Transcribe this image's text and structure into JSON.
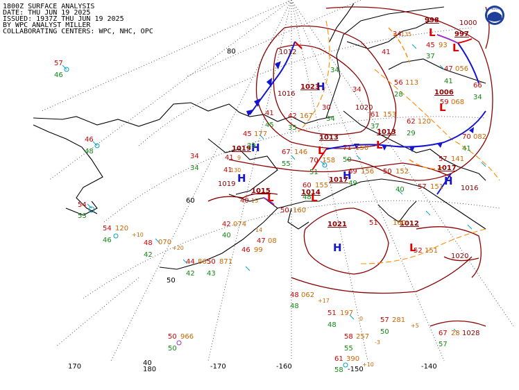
{
  "header": {
    "line1": "1800Z SURFACE ANALYSIS",
    "line2": "DATE: THU JUN 19 2025",
    "line3": "ISSUED: 1937Z THU JUN 19 2025",
    "line4": "BY WPC ANALYST MILLER",
    "line5": "COLLABORATING CENTERS: WPC, NHC, OPC"
  },
  "logo_text": "NOAA",
  "lat_labels": [
    "80",
    "60",
    "50",
    "40"
  ],
  "lon_labels": [
    "170",
    "180",
    "-170",
    "-160",
    "-150",
    "-140"
  ],
  "pressure_centers": [
    {
      "type": "H",
      "value": "1023"
    },
    {
      "type": "H",
      "value": "1019"
    },
    {
      "type": "H",
      "value": "1017"
    },
    {
      "type": "H",
      "value": "1021"
    },
    {
      "type": "H",
      "value": "1017"
    },
    {
      "type": "L",
      "value": "998"
    },
    {
      "type": "L",
      "value": "997"
    },
    {
      "type": "L",
      "value": "1013"
    },
    {
      "type": "L",
      "value": "1015"
    },
    {
      "type": "L",
      "value": "1014"
    },
    {
      "type": "L",
      "value": "1006"
    },
    {
      "type": "L",
      "value": "1012"
    },
    {
      "type": "L",
      "value": "1013"
    }
  ],
  "isobar_labels": [
    "1012",
    "1016",
    "1020",
    "1019",
    "1016",
    "1000",
    "1020",
    "1028"
  ],
  "station_obs": [
    {
      "temp": "57",
      "dew": "46"
    },
    {
      "temp": "46",
      "dew": "48"
    },
    {
      "temp": "54",
      "dew": "53"
    },
    {
      "temp": "54",
      "pres": "120",
      "dew": "46",
      "tend": "+10"
    },
    {
      "temp": "48",
      "pres": "070",
      "dew": "42",
      "tend": "+20"
    },
    {
      "temp": "44",
      "pres": "865",
      "dew": "42"
    },
    {
      "temp": "50",
      "pres": "871",
      "dew": "43"
    },
    {
      "temp": "50",
      "pres": "966",
      "dew": "50"
    },
    {
      "temp": "42",
      "pres": "074",
      "dew": "40",
      "tend": "14"
    },
    {
      "temp": "46",
      "pres": "99"
    },
    {
      "temp": "47",
      "pres": "08"
    },
    {
      "temp": "34",
      "dew": "34"
    },
    {
      "temp": "41",
      "pres": "130"
    },
    {
      "temp": "40",
      "pres": "15"
    },
    {
      "temp": "45",
      "pres": "177",
      "dew": "39"
    },
    {
      "temp": "41",
      "dew": "45"
    },
    {
      "temp": "42",
      "pres": "167",
      "dew": "35"
    },
    {
      "temp": "30",
      "dew": "34"
    },
    {
      "temp": "34",
      "dew": "34"
    },
    {
      "temp": "41",
      "pres": "9"
    },
    {
      "temp": "67",
      "pres": "146",
      "dew": "55"
    },
    {
      "temp": "70",
      "pres": "158",
      "dew": "51"
    },
    {
      "temp": "60",
      "pres": "155",
      "dew": "48"
    },
    {
      "temp": "50",
      "pres": "160"
    },
    {
      "temp": "71",
      "pres": "150",
      "dew": "50"
    },
    {
      "temp": "69",
      "pres": "156",
      "dew": "49"
    },
    {
      "temp": "61",
      "pres": "153",
      "dew": "37"
    },
    {
      "temp": "62",
      "pres": "120",
      "dew": "29"
    },
    {
      "temp": "56",
      "pres": "113",
      "dew": "28"
    },
    {
      "temp": "50",
      "pres": "152",
      "dew": "40"
    },
    {
      "temp": "59",
      "pres": "068",
      "dew": "41"
    },
    {
      "temp": "47",
      "pres": "056",
      "dew": "41"
    },
    {
      "temp": "66",
      "dew": "34"
    },
    {
      "temp": "70",
      "pres": "082",
      "dew": "41"
    },
    {
      "temp": "57",
      "pres": "141"
    },
    {
      "temp": "57",
      "pres": "151"
    },
    {
      "temp": "51",
      "pres": "160"
    },
    {
      "temp": "52",
      "pres": "151"
    },
    {
      "temp": "48",
      "pres": "062",
      "dew": "48",
      "tend": "+17"
    },
    {
      "temp": "51",
      "pres": "197",
      "dew": "48",
      "tend": "0"
    },
    {
      "temp": "58",
      "pres": "257",
      "dew": "55",
      "tend": "-3"
    },
    {
      "temp": "61",
      "pres": "390",
      "dew": "58",
      "tend": "+10"
    },
    {
      "temp": "57",
      "pres": "281",
      "dew": "50",
      "tend": "+5"
    },
    {
      "temp": "67",
      "pres": "28",
      "dew": "57"
    },
    {
      "temp": "45",
      "pres": "93",
      "dew": "37"
    },
    {
      "temp": "34",
      "pres": "135"
    },
    {
      "temp": "41",
      "pres": "1020"
    }
  ],
  "colors": {
    "isobar": "#8b0000",
    "cold_front": "#1515d0",
    "warm_front": "#e00000",
    "occluded_front": "#9b30c0",
    "trough": "#ff8c00",
    "high": "#1515d0",
    "low": "#e00000",
    "temp": "#cc0000",
    "dewpoint": "#118811",
    "pressure": "#cc6600"
  }
}
